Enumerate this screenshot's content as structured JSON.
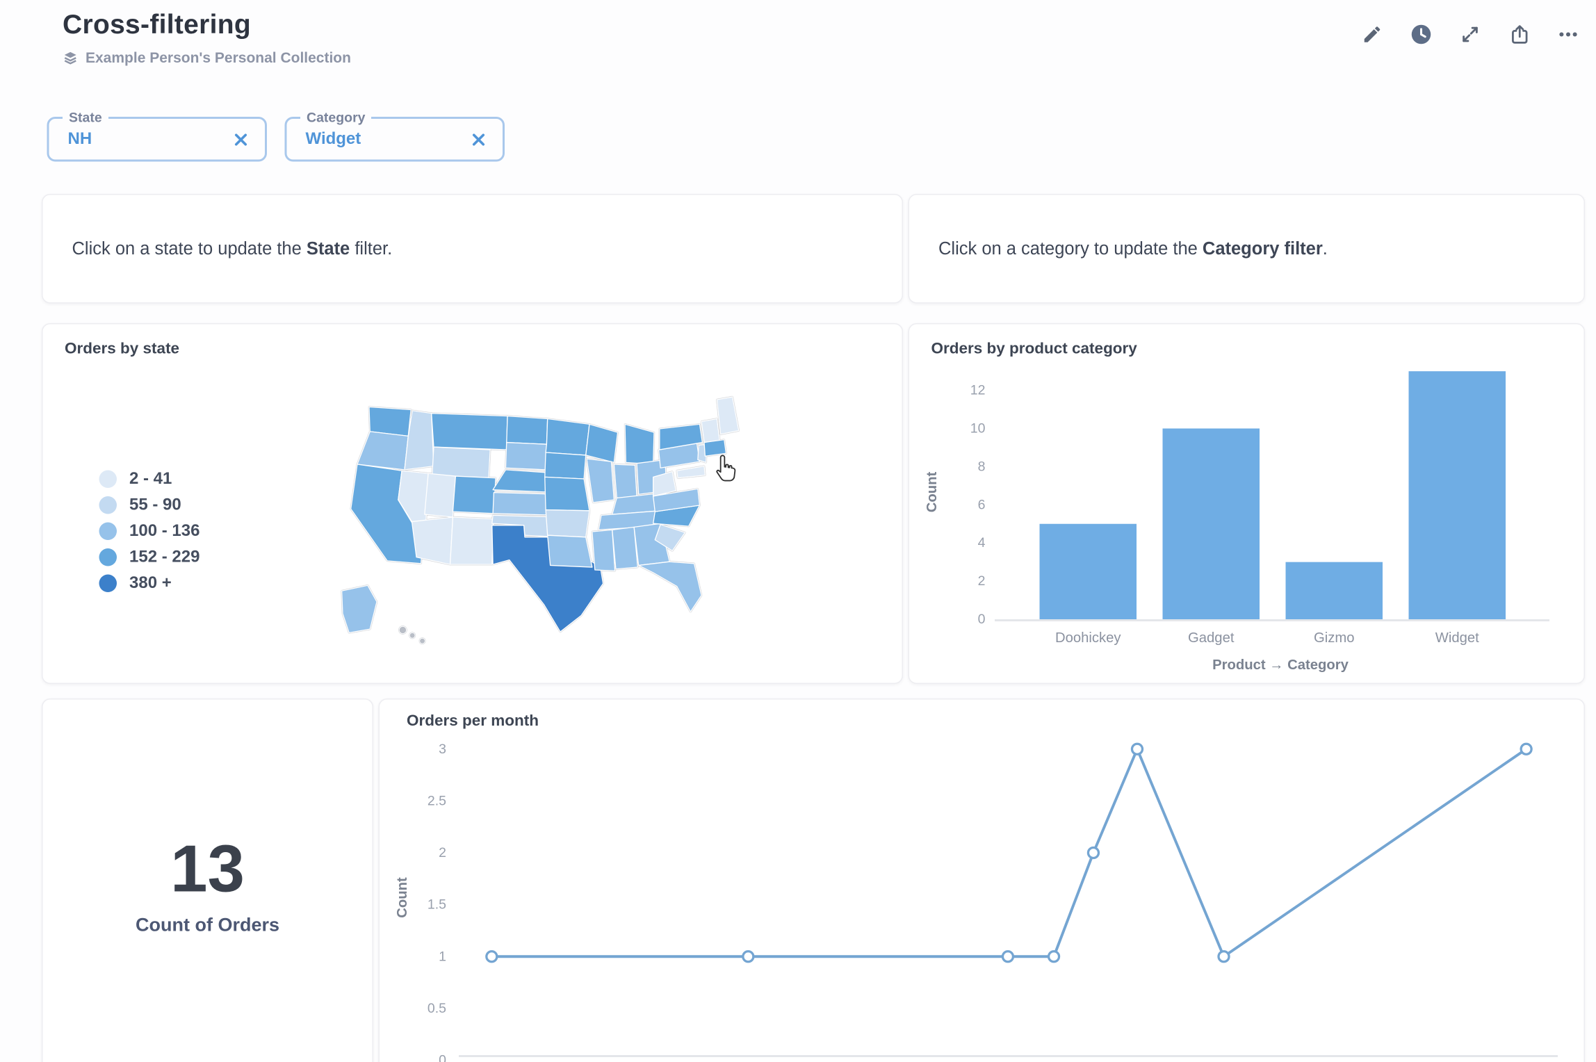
{
  "header": {
    "title": "Cross-filtering",
    "collection": "Example Person's Personal Collection",
    "actions": [
      {
        "icon": "edit-pencil"
      },
      {
        "icon": "auto-refresh-clock"
      },
      {
        "icon": "fullscreen-expand"
      },
      {
        "icon": "share-export"
      },
      {
        "icon": "more-ellipsis"
      }
    ]
  },
  "filters": [
    {
      "label": "State",
      "value": "NH"
    },
    {
      "label": "Category",
      "value": "Widget"
    }
  ],
  "text_cards": [
    {
      "prefix": "Click on a state to update the ",
      "bold": "State",
      "suffix": " filter."
    },
    {
      "prefix": "Click on a category to update the ",
      "bold": "Category filter",
      "suffix": "."
    }
  ],
  "colors": {
    "brand_blue": "#4f94d8",
    "page_background": "#fdfdfe"
  },
  "chart_data": [
    {
      "type": "choropleth-map",
      "title": "Orders by state",
      "legend": [
        {
          "label": "2 - 41",
          "color": "#dde9f6"
        },
        {
          "label": "55 - 90",
          "color": "#c3daf1"
        },
        {
          "label": "100 - 136",
          "color": "#96c2ea"
        },
        {
          "label": "152 - 229",
          "color": "#64a8de"
        },
        {
          "label": "380 +",
          "color": "#3c80ca"
        }
      ],
      "no_data_color": "#b9bec7",
      "state_buckets": {
        "WA": 3,
        "OR": 2,
        "CA": 3,
        "NV": 0,
        "ID": 1,
        "MT": 3,
        "WY": 1,
        "UT": 0,
        "CO": 3,
        "AZ": 0,
        "NM": 0,
        "ND": 3,
        "SD": 2,
        "NE": 3,
        "KS": 2,
        "OK": 1,
        "TX": 4,
        "MN": 3,
        "IA": 3,
        "MO": 3,
        "AR": 1,
        "LA": 2,
        "WI": 3,
        "IL": 2,
        "MI": 3,
        "IN": 2,
        "OH": 2,
        "KY": 2,
        "TN": 2,
        "MS": 2,
        "AL": 2,
        "GA": 2,
        "FL": 2,
        "SC": 1,
        "NC": 3,
        "VA": 2,
        "WV": 0,
        "PA": 2,
        "NY": 3,
        "NJ": 1,
        "MD": 0,
        "ME": 0,
        "NH": 0,
        "MA": 3,
        "AK": 2,
        "HI": null
      }
    },
    {
      "type": "bar",
      "title": "Orders by product category",
      "categories": [
        "Doohickey",
        "Gadget",
        "Gizmo",
        "Widget"
      ],
      "values": [
        5,
        10,
        3,
        13
      ],
      "xlabel": "Product → Category",
      "ylabel": "Count",
      "yticks": [
        0,
        2,
        4,
        6,
        8,
        10,
        12
      ],
      "ylim": [
        0,
        13
      ],
      "bar_color": "#6fade4"
    },
    {
      "type": "line",
      "title": "Orders per month",
      "ylabel": "Count",
      "ytick_labels": [
        "0",
        "0.5",
        "1",
        "1.5",
        "2",
        "2.5",
        "3"
      ],
      "ylim": [
        0,
        3
      ],
      "x_tick_labels_visible": false,
      "line_color": "#74a5d2",
      "points": [
        {
          "x_frac": 0.022,
          "y": 1
        },
        {
          "x_frac": 0.262,
          "y": 1
        },
        {
          "x_frac": 0.505,
          "y": 1
        },
        {
          "x_frac": 0.548,
          "y": 1
        },
        {
          "x_frac": 0.585,
          "y": 2
        },
        {
          "x_frac": 0.626,
          "y": 3
        },
        {
          "x_frac": 0.707,
          "y": 1
        },
        {
          "x_frac": 0.99,
          "y": 3
        }
      ]
    },
    {
      "type": "scalar",
      "value": "13",
      "label": "Count of Orders"
    }
  ]
}
